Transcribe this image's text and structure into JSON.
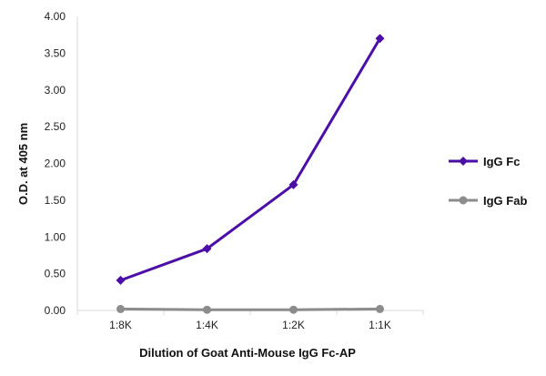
{
  "chart_data": {
    "type": "line",
    "title": "",
    "xlabel": "Dilution of Goat Anti-Mouse IgG Fc-AP",
    "ylabel": "O.D. at 405 nm",
    "categories": [
      "1:8K",
      "1:4K",
      "1:2K",
      "1:1K"
    ],
    "ylim": [
      0,
      4
    ],
    "yticks": [
      "0.00",
      "0.50",
      "1.00",
      "1.50",
      "2.00",
      "2.50",
      "3.00",
      "3.50",
      "4.00"
    ],
    "grid": false,
    "legend_position": "right",
    "series": [
      {
        "name": "IgG Fc",
        "values": [
          0.41,
          0.84,
          1.71,
          3.7
        ],
        "color": "#4b0ea6",
        "marker": "diamond"
      },
      {
        "name": "IgG Fab",
        "values": [
          0.02,
          0.01,
          0.01,
          0.02
        ],
        "color": "#8c8c8c",
        "marker": "circle"
      }
    ]
  }
}
